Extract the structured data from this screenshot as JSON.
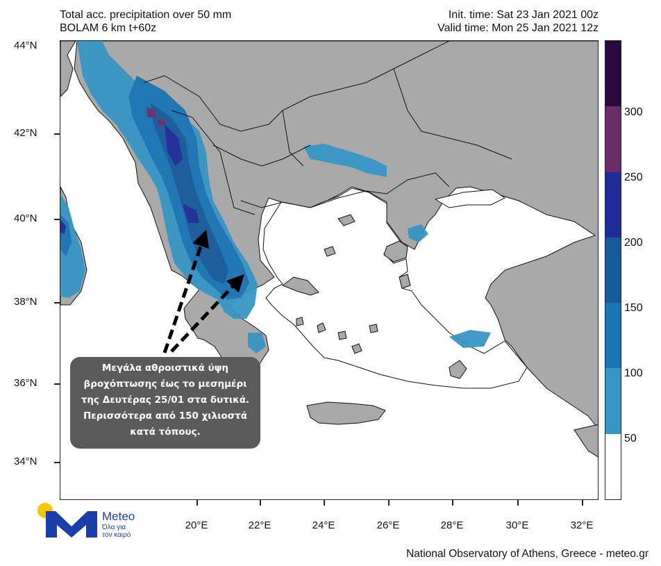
{
  "header": {
    "title": "Total acc. precipitation over 50 mm",
    "model": "BOLAM 6 km t+60z",
    "init_time": "Init. time: Sat 23 Jan 2021 00z",
    "valid_time": "Valid time: Mon 25 Jan 2021 12z"
  },
  "axes": {
    "lat_labels": [
      "44°N",
      "42°N",
      "40°N",
      "38°N",
      "36°N",
      "34°N"
    ],
    "lon_labels": [
      "20°E",
      "22°E",
      "24°E",
      "26°E",
      "28°E",
      "30°E",
      "32°E"
    ]
  },
  "colorbar": {
    "labels": [
      "300",
      "250",
      "200",
      "150",
      "100",
      "50"
    ],
    "colors_top_to_bottom": [
      "#2a0a3d",
      "#6b2d67",
      "#1f2c9a",
      "#175a9a",
      "#1a75b5",
      "#3896c4",
      "#ffffff"
    ]
  },
  "colors": {
    "land": "#a9a9a9",
    "sea": "#ffffff",
    "precip_50_100": "#3896c4",
    "precip_100_150": "#1a75b5",
    "precip_150_200": "#175a9a",
    "precip_200_250": "#1f2c9a",
    "precip_250_300": "#6b2d67"
  },
  "callout": {
    "lines": [
      "Μεγάλα αθροιστικά ύψη",
      "βροχόπτωσης έως το μεσημέρι",
      "της Δευτέρας 25/01 στα δυτικά.",
      "Περισσότερα από 150 χιλιοστά",
      "κατά τόπους."
    ]
  },
  "logo": {
    "brand": "Meteo",
    "slogan_line1": "Όλα για",
    "slogan_line2": "τον καιρό"
  },
  "footer": "National Observatory of Athens, Greece - meteo.gr"
}
